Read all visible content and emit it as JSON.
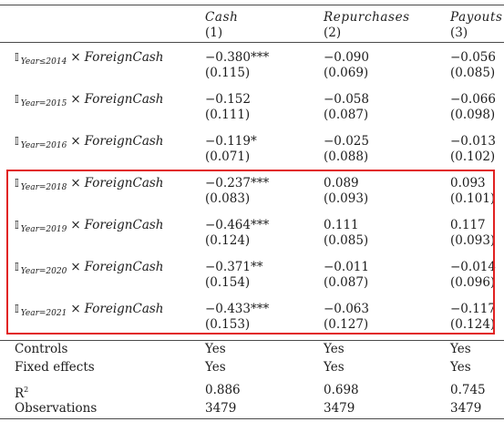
{
  "header": {
    "columns": [
      {
        "name": "Cash",
        "num": "(1)"
      },
      {
        "name": "Repurchases",
        "num": "(2)"
      },
      {
        "name": "Payouts",
        "num": "(3)"
      }
    ]
  },
  "interaction_rows": [
    {
      "indicator": "𝕀",
      "subscript": "Year≤2014",
      "times": "×",
      "var": "ForeignCash",
      "cells": [
        [
          "−0.380***",
          "(0.115)"
        ],
        [
          "−0.090",
          "(0.069)"
        ],
        [
          "−0.056",
          "(0.085)"
        ]
      ]
    },
    {
      "indicator": "𝕀",
      "subscript": "Year=2015",
      "times": "×",
      "var": "ForeignCash",
      "cells": [
        [
          "−0.152",
          "(0.111)"
        ],
        [
          "−0.058",
          "(0.087)"
        ],
        [
          "−0.066",
          "(0.098)"
        ]
      ]
    },
    {
      "indicator": "𝕀",
      "subscript": "Year=2016",
      "times": "×",
      "var": "ForeignCash",
      "cells": [
        [
          "−0.119*",
          "(0.071)"
        ],
        [
          "−0.025",
          "(0.088)"
        ],
        [
          "−0.013",
          "(0.102)"
        ]
      ]
    },
    {
      "indicator": "𝕀",
      "subscript": "Year=2018",
      "times": "×",
      "var": "ForeignCash",
      "cells": [
        [
          "−0.237***",
          "(0.083)"
        ],
        [
          "0.089",
          "(0.093)"
        ],
        [
          "0.093",
          "(0.101)"
        ]
      ]
    },
    {
      "indicator": "𝕀",
      "subscript": "Year=2019",
      "times": "×",
      "var": "ForeignCash",
      "cells": [
        [
          "−0.464***",
          "(0.124)"
        ],
        [
          "0.111",
          "(0.085)"
        ],
        [
          "0.117",
          "(0.093)"
        ]
      ]
    },
    {
      "indicator": "𝕀",
      "subscript": "Year=2020",
      "times": "×",
      "var": "ForeignCash",
      "cells": [
        [
          "−0.371**",
          "(0.154)"
        ],
        [
          "−0.011",
          "(0.087)"
        ],
        [
          "−0.014",
          "(0.096)"
        ]
      ]
    },
    {
      "indicator": "𝕀",
      "subscript": "Year=2021",
      "times": "×",
      "var": "ForeignCash",
      "cells": [
        [
          "−0.433***",
          "(0.153)"
        ],
        [
          "−0.063",
          "(0.127)"
        ],
        [
          "−0.117",
          "(0.124)"
        ]
      ]
    }
  ],
  "footer_rows": [
    {
      "label": "Controls",
      "values": [
        "Yes",
        "Yes",
        "Yes"
      ]
    },
    {
      "label": "Fixed effects",
      "values": [
        "Yes",
        "Yes",
        "Yes"
      ]
    },
    {
      "label": "R",
      "sup": "2",
      "values": [
        "0.886",
        "0.698",
        "0.745"
      ]
    },
    {
      "label": "Observations",
      "values": [
        "3479",
        "3479",
        "3479"
      ]
    }
  ],
  "highlight_color": "#e12121"
}
